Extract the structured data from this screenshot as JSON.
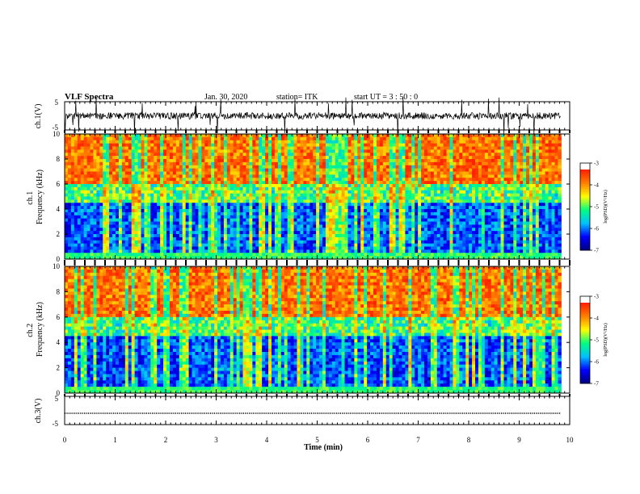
{
  "header": {
    "title": "VLF Spectra",
    "date": "Jan. 30, 2020",
    "station": "station= ITK",
    "start": "start UT =  3 : 50 : 0"
  },
  "colors": {
    "spectrogram_ramp": [
      "#000080",
      "#0000ff",
      "#00c0ff",
      "#00ff80",
      "#ffff00",
      "#ff8000",
      "#ff2000",
      "#ffffff"
    ],
    "trace": "#000000"
  },
  "chart_data": [
    {
      "id": "waveform-ch1",
      "type": "line",
      "ylabel": "ch.1(V)",
      "ylim": [
        -5,
        5
      ],
      "y_ticks": [
        "5",
        "-5"
      ],
      "x_range": [
        0,
        10
      ],
      "noise_amplitude_v": 1.2,
      "baseline_v": 0
    },
    {
      "id": "spectrogram-ch1",
      "type": "heatmap",
      "ylabel": "ch.1\nFrequency (kHz)",
      "ylim": [
        0,
        10
      ],
      "y_ticks": [
        "0",
        "2",
        "4",
        "6",
        "8",
        "10"
      ],
      "x_range": [
        0,
        10
      ],
      "data_end_min": 9.83,
      "colorbar": {
        "label": "log(PSD)(V²/Hz)",
        "range": [
          -7,
          -3
        ],
        "ticks": [
          "-3",
          "-4",
          "-5",
          "-6",
          "-7"
        ]
      }
    },
    {
      "id": "spectrogram-ch2",
      "type": "heatmap",
      "ylabel": "ch.2\nFrequency (kHz)",
      "ylim": [
        0,
        10
      ],
      "y_ticks": [
        "0",
        "2",
        "4",
        "6",
        "8",
        "10"
      ],
      "x_range": [
        0,
        10
      ],
      "data_end_min": 9.83,
      "colorbar": {
        "label": "log(PSD)(V²/Hz)",
        "range": [
          -7,
          -3
        ],
        "ticks": [
          "-3",
          "-4",
          "-5",
          "-6",
          "-7"
        ]
      }
    },
    {
      "id": "waveform-ch3",
      "type": "line",
      "ylabel": "ch.3(V)",
      "ylim": [
        -5,
        5
      ],
      "y_ticks": [
        "5",
        "-5"
      ],
      "x_range": [
        0,
        10
      ],
      "baseline_v": -1,
      "noise_amplitude_v": 0
    }
  ],
  "x_axis": {
    "label": "Time (min)",
    "ticks": [
      "0",
      "1",
      "2",
      "3",
      "4",
      "5",
      "6",
      "7",
      "8",
      "9",
      "10"
    ]
  }
}
